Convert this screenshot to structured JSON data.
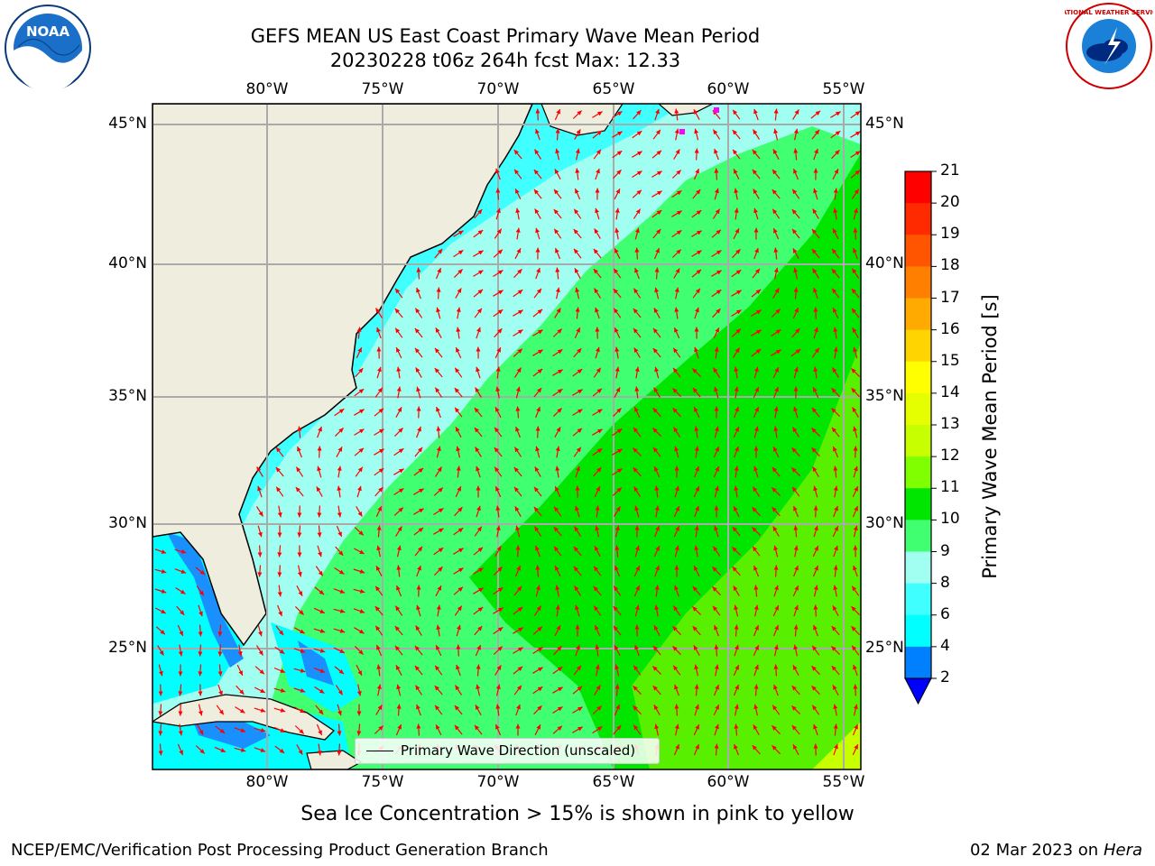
{
  "title_line1": "GEFS MEAN US East Coast Primary Wave Mean Period",
  "title_line2": "20230228 t06z 264h fcst   Max: 12.33",
  "x_ticks": [
    "80°W",
    "75°W",
    "70°W",
    "65°W",
    "60°W",
    "55°W"
  ],
  "y_ticks": [
    "45°N",
    "40°N",
    "35°N",
    "30°N",
    "25°N"
  ],
  "legend_label": "Primary Wave Direction (unscaled)",
  "colorbar": {
    "title": "Primary Wave Mean Period [s]",
    "ticks": [
      "21",
      "20",
      "19",
      "18",
      "17",
      "16",
      "15",
      "14",
      "13",
      "12",
      "11",
      "10",
      "9",
      "8",
      "6",
      "4",
      "2"
    ],
    "colors": [
      "#ff0000",
      "#ff2a00",
      "#ff5500",
      "#ff8000",
      "#ffaa00",
      "#ffd400",
      "#ffff00",
      "#e5ff00",
      "#c8ff00",
      "#80ff00",
      "#00e600",
      "#40ff70",
      "#a0fff0",
      "#40ffff",
      "#00ffff",
      "#0080ff"
    ],
    "extend_color": "#0000ff"
  },
  "caption": "Sea Ice Concentration > 15% is shown in pink to yellow",
  "footer_left": "NCEP/EMC/Verification Post Processing Product Generation Branch",
  "footer_date": "02 Mar 2023 on",
  "footer_machine": "Hera",
  "logos": {
    "left": "NOAA",
    "right": "NATIONAL WEATHER SERVICE"
  },
  "colors": {
    "land": "#efedde",
    "arrow": "#ff0000",
    "grid": "#aaaaaa"
  }
}
